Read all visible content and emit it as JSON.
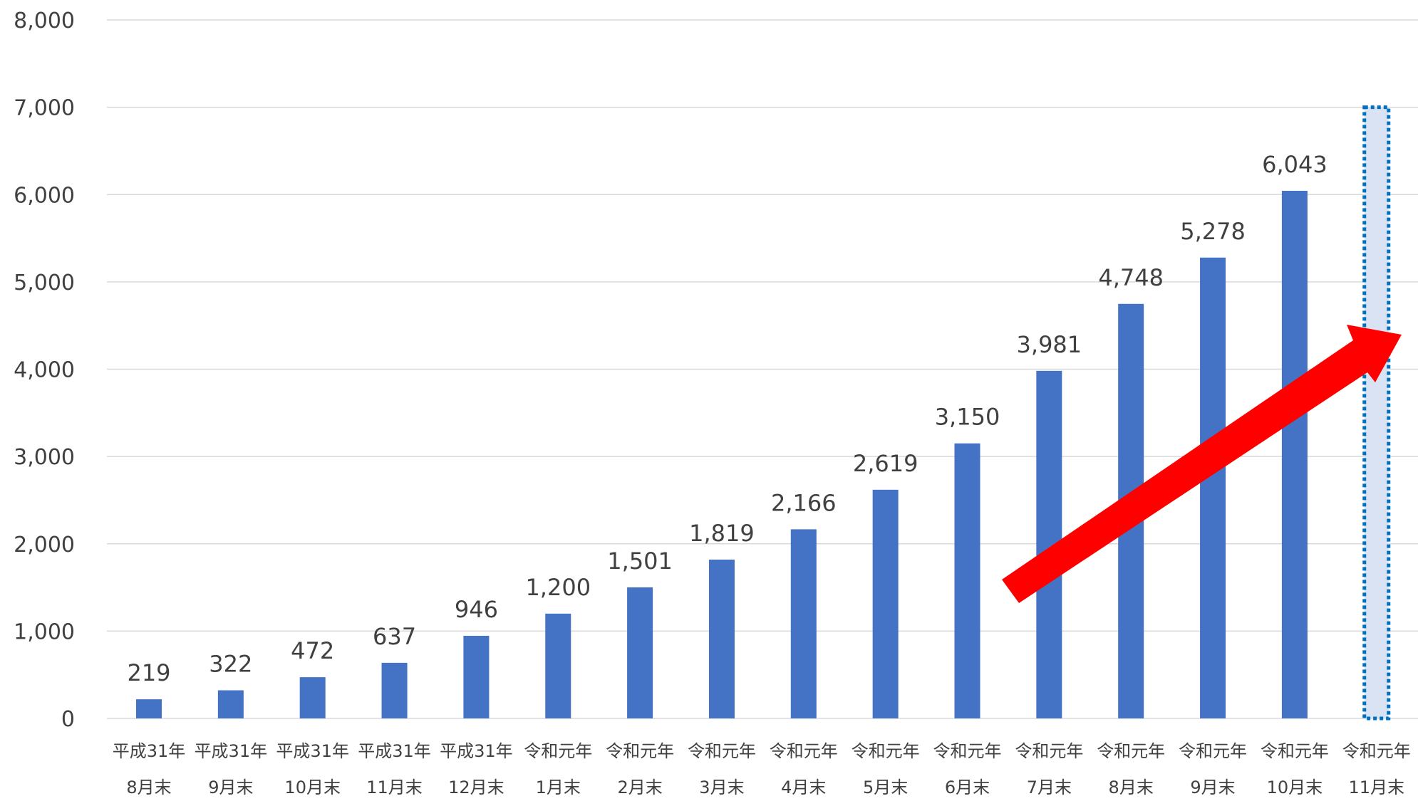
{
  "chart_data": {
    "type": "bar",
    "categories": [
      [
        "平成31年",
        "8月末"
      ],
      [
        "平成31年",
        "9月末"
      ],
      [
        "平成31年",
        "10月末"
      ],
      [
        "平成31年",
        "11月末"
      ],
      [
        "平成31年",
        "12月末"
      ],
      [
        "令和元年",
        "1月末"
      ],
      [
        "令和元年",
        "2月末"
      ],
      [
        "令和元年",
        "3月末"
      ],
      [
        "令和元年",
        "4月末"
      ],
      [
        "令和元年",
        "5月末"
      ],
      [
        "令和元年",
        "6月末"
      ],
      [
        "令和元年",
        "7月末"
      ],
      [
        "令和元年",
        "8月末"
      ],
      [
        "令和元年",
        "9月末"
      ],
      [
        "令和元年",
        "10月末"
      ],
      [
        "令和元年",
        "11月末"
      ]
    ],
    "values": [
      219,
      322,
      472,
      637,
      946,
      1200,
      1501,
      1819,
      2166,
      2619,
      3150,
      3981,
      4748,
      5278,
      6043,
      null
    ],
    "data_labels": [
      "219",
      "322",
      "472",
      "637",
      "946",
      "1,200",
      "1,501",
      "1,819",
      "2,166",
      "2,619",
      "3,150",
      "3,981",
      "4,748",
      "5,278",
      "6,043",
      ""
    ],
    "y_ticks": [
      0,
      1000,
      2000,
      3000,
      4000,
      5000,
      6000,
      7000,
      8000
    ],
    "y_tick_labels": [
      "0",
      "1,000",
      "2,000",
      "3,000",
      "4,000",
      "5,000",
      "6,000",
      "7,000",
      "8,000"
    ],
    "ylim": [
      0,
      8000
    ],
    "grid": true,
    "projection": {
      "category_index": 15,
      "value": 7000
    },
    "annotation": "upward-trend-arrow"
  },
  "colors": {
    "bar": "#4472C4",
    "grid": "#D9D9D9",
    "text": "#404040",
    "arrow": "#FF0000",
    "projection_fill": "#DAE3F3",
    "projection_border": "#0070C0"
  }
}
